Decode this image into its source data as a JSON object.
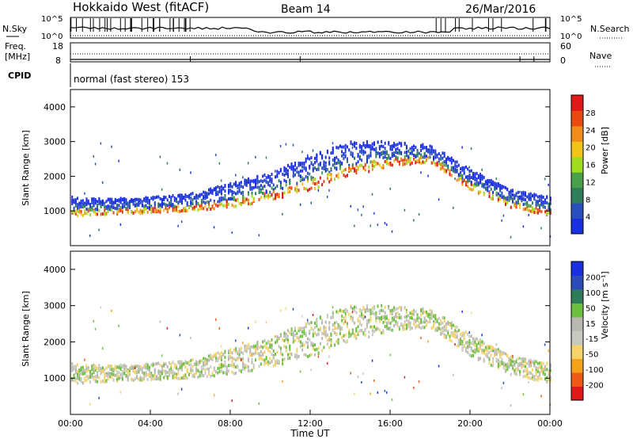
{
  "header": {
    "station": "Hokkaido West (fitACF)",
    "beam": "Beam 14",
    "date": "26/Mar/2016"
  },
  "top_panels": {
    "nsky_label": "N.Sky",
    "nsearch_label": "N.Search",
    "noise_ticks": [
      "10^5",
      "10^0"
    ],
    "freq_label": "Freq.",
    "freq_unit": "[MHz]",
    "freq_ticks": [
      "18",
      "8"
    ],
    "nave_label": "Nave",
    "nave_ticks": [
      "60",
      "0"
    ],
    "cpid_label": "CPID",
    "cpid_text": "normal (fast stereo) 153"
  },
  "colors": {
    "power": [
      "#1a2fe0",
      "#2a4fbf",
      "#2f7d5a",
      "#4a9f4a",
      "#9fdc20",
      "#f2c418",
      "#f08c1a",
      "#e84a12",
      "#e01a1a"
    ],
    "velocity": [
      "#e01a1a",
      "#f05a14",
      "#f4a21a",
      "#f6d36a",
      "#c8c8c0",
      "#b8b8b0",
      "#6cc040",
      "#2e7d58",
      "#2c4bb8",
      "#1a2fe0"
    ]
  },
  "chart_data": [
    {
      "type": "heatmap",
      "panel": "power",
      "ylabel": "Slant Range [km]",
      "yticks": [
        "1000",
        "2000",
        "3000",
        "4000"
      ],
      "ylim": [
        0,
        4500
      ],
      "colorbar_label": "Power [dB]",
      "colorbar_ticks": [
        "4",
        "8",
        "12",
        "16",
        "20",
        "24",
        "28"
      ],
      "clim": [
        0,
        32
      ],
      "xlim": [
        0,
        24
      ],
      "band": {
        "x": [
          0,
          2,
          4,
          6,
          8,
          10,
          12,
          14,
          16,
          18,
          20,
          22,
          24
        ],
        "lower": [
          850,
          900,
          950,
          1000,
          1100,
          1300,
          1600,
          2000,
          2300,
          2400,
          1600,
          1100,
          850
        ],
        "upper": [
          1400,
          1350,
          1400,
          1500,
          1800,
          2100,
          2600,
          3000,
          3000,
          2900,
          2200,
          1600,
          1400
        ]
      }
    },
    {
      "type": "heatmap",
      "panel": "velocity",
      "ylabel": "Slant Range [km]",
      "yticks": [
        "1000",
        "2000",
        "3000",
        "4000"
      ],
      "ylim": [
        0,
        4500
      ],
      "colorbar_label": "Velocity [m s⁻¹]",
      "colorbar_ticks": [
        "200",
        "100",
        "50",
        "15",
        "-15",
        "-50",
        "-100",
        "-200"
      ],
      "clim": [
        -250,
        250
      ],
      "xlim": [
        0,
        24
      ],
      "xlabel": "Time UT",
      "xticks": [
        "00:00",
        "04:00",
        "08:00",
        "12:00",
        "16:00",
        "20:00",
        "00:00"
      ]
    }
  ]
}
